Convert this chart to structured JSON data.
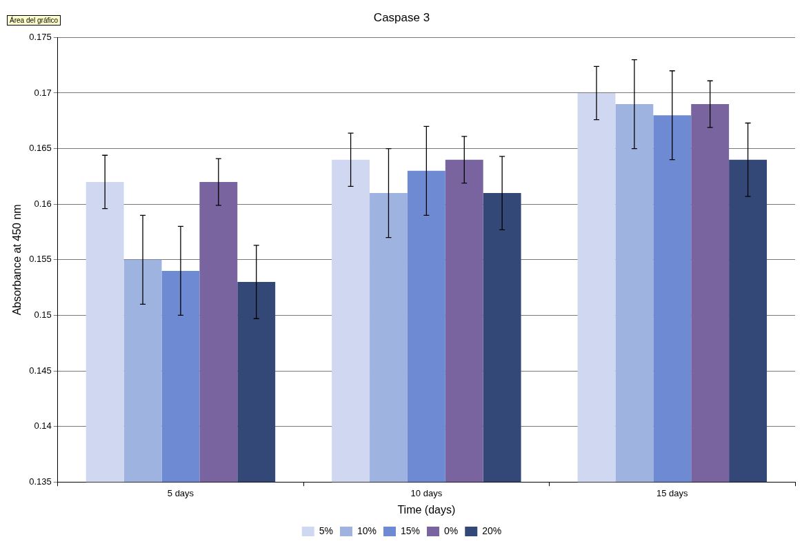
{
  "chart_data": {
    "type": "bar",
    "title": "Caspase 3",
    "xlabel": "Time (days)",
    "ylabel": "Absorbance at 450 nm",
    "annotations": [
      "Área del gráfico"
    ],
    "categories": [
      "5 days",
      "10 days",
      "15 days"
    ],
    "series": [
      {
        "name": "5%",
        "color": "#cfd8f0",
        "values": [
          0.162,
          0.164,
          0.17
        ],
        "errors": [
          0.0024,
          0.0024,
          0.0024
        ]
      },
      {
        "name": "10%",
        "color": "#9fb3e0",
        "values": [
          0.155,
          0.161,
          0.169
        ],
        "errors": [
          0.004,
          0.004,
          0.004
        ]
      },
      {
        "name": "15%",
        "color": "#6e8ad2",
        "values": [
          0.154,
          0.163,
          0.168
        ],
        "errors": [
          0.004,
          0.004,
          0.004
        ]
      },
      {
        "name": "0%",
        "color": "#7a64a0",
        "values": [
          0.162,
          0.164,
          0.169
        ],
        "errors": [
          0.0021,
          0.0021,
          0.0021
        ]
      },
      {
        "name": "20%",
        "color": "#344878",
        "values": [
          0.153,
          0.161,
          0.164
        ],
        "errors": [
          0.0033,
          0.0033,
          0.0033
        ]
      }
    ],
    "ylim": [
      0.135,
      0.175
    ],
    "yticks": [
      0.135,
      0.14,
      0.145,
      0.15,
      0.155,
      0.16,
      0.165,
      0.17,
      0.175
    ],
    "grid": "y",
    "legend": "bottom"
  }
}
